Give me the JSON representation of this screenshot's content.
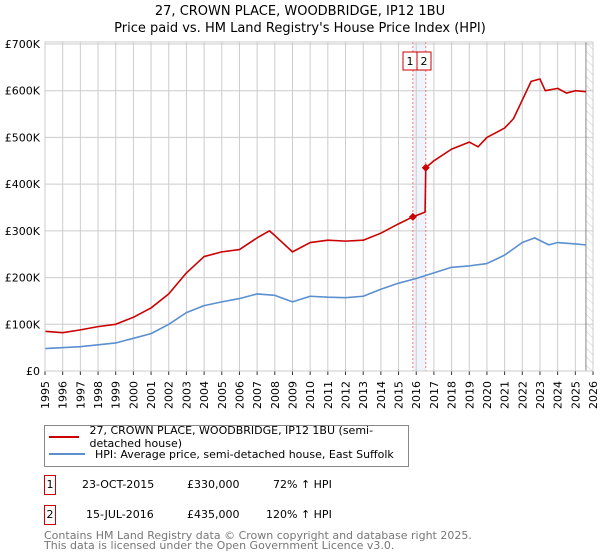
{
  "chart_data": {
    "type": "line",
    "title": "27, CROWN PLACE, WOODBRIDGE, IP12 1BU",
    "subtitle": "Price paid vs. HM Land Registry's House Price Index (HPI)",
    "xlim": [
      1995,
      2026
    ],
    "ylim": [
      0,
      700000
    ],
    "x_ticks": [
      "1995",
      "1996",
      "1997",
      "1998",
      "1999",
      "2000",
      "2001",
      "2002",
      "2003",
      "2004",
      "2005",
      "2006",
      "2007",
      "2008",
      "2009",
      "2010",
      "2011",
      "2012",
      "2013",
      "2014",
      "2015",
      "2016",
      "2017",
      "2018",
      "2019",
      "2020",
      "2021",
      "2022",
      "2023",
      "2024",
      "2025",
      "2026"
    ],
    "y_ticks": [
      {
        "v": 0,
        "label": "£0"
      },
      {
        "v": 100000,
        "label": "£100K"
      },
      {
        "v": 200000,
        "label": "£200K"
      },
      {
        "v": 300000,
        "label": "£300K"
      },
      {
        "v": 400000,
        "label": "£400K"
      },
      {
        "v": 500000,
        "label": "£500K"
      },
      {
        "v": 600000,
        "label": "£600K"
      },
      {
        "v": 700000,
        "label": "£700K"
      }
    ],
    "grid": true,
    "forecast_hatch_from": 2025.6,
    "series": [
      {
        "name": "27, CROWN PLACE, WOODBRIDGE, IP12 1BU (semi-detached house)",
        "color": "#cc0000",
        "x": [
          1995,
          1996,
          1997,
          1998,
          1999,
          2000,
          2001,
          2002,
          2003,
          2004,
          2005,
          2006,
          2007,
          2007.7,
          2008,
          2009,
          2010,
          2011,
          2012,
          2013,
          2014,
          2015,
          2015.81,
          2016.5,
          2016.54,
          2017,
          2018,
          2019,
          2019.5,
          2020,
          2021,
          2021.5,
          2022,
          2022.5,
          2023,
          2023.3,
          2024,
          2024.5,
          2025,
          2025.6
        ],
        "y": [
          85000,
          82000,
          88000,
          95000,
          100000,
          115000,
          135000,
          165000,
          210000,
          245000,
          255000,
          260000,
          285000,
          300000,
          290000,
          255000,
          275000,
          280000,
          278000,
          280000,
          295000,
          315000,
          330000,
          340000,
          435000,
          450000,
          475000,
          490000,
          480000,
          500000,
          520000,
          540000,
          580000,
          620000,
          625000,
          600000,
          605000,
          595000,
          600000,
          598000
        ]
      },
      {
        "name": "HPI: Average price, semi-detached house, East Suffolk",
        "color": "#5b8fd0",
        "x": [
          1995,
          1997,
          1999,
          2000,
          2001,
          2002,
          2003,
          2004,
          2005,
          2006,
          2007,
          2008,
          2009,
          2010,
          2011,
          2012,
          2013,
          2014,
          2015,
          2016,
          2017,
          2018,
          2019,
          2020,
          2021,
          2022,
          2022.7,
          2023.5,
          2024,
          2025,
          2025.6
        ],
        "y": [
          48000,
          52000,
          60000,
          70000,
          80000,
          100000,
          125000,
          140000,
          148000,
          155000,
          165000,
          162000,
          148000,
          160000,
          158000,
          157000,
          160000,
          175000,
          188000,
          198000,
          210000,
          222000,
          225000,
          230000,
          248000,
          275000,
          285000,
          270000,
          275000,
          272000,
          270000
        ]
      }
    ],
    "sales": [
      {
        "id": "1",
        "date": "23-OCT-2015",
        "x": 2015.81,
        "price": "£330,000",
        "value": 330000,
        "hpi": "72% ↑ HPI"
      },
      {
        "id": "2",
        "date": "15-JUL-2016",
        "x": 2016.54,
        "price": "£435,000",
        "value": 435000,
        "hpi": "120% ↑ HPI"
      }
    ]
  },
  "legend": {
    "red": "27, CROWN PLACE, WOODBRIDGE, IP12 1BU (semi-detached house)",
    "blue": "HPI: Average price, semi-detached house, East Suffolk"
  },
  "footer": {
    "line1": "Contains HM Land Registry data © Crown copyright and database right 2025.",
    "line2": "This data is licensed under the Open Government Licence v3.0."
  }
}
